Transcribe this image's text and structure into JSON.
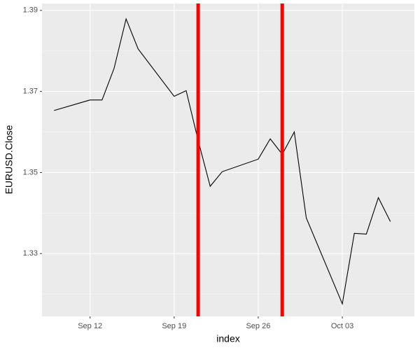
{
  "chart_data": {
    "type": "line",
    "x_label": "index",
    "y_label": "EURUSD.Close",
    "x": [
      "Sep 09",
      "Sep 12",
      "Sep 13",
      "Sep 14",
      "Sep 15",
      "Sep 16",
      "Sep 19",
      "Sep 20",
      "Sep 21",
      "Sep 22",
      "Sep 23",
      "Sep 26",
      "Sep 27",
      "Sep 28",
      "Sep 29",
      "Sep 30",
      "Oct 03",
      "Oct 04",
      "Oct 05",
      "Oct 06",
      "Oct 07"
    ],
    "series": [
      {
        "name": "EURUSD.Close",
        "color": "#000000",
        "values": [
          1.3653,
          1.3679,
          1.3679,
          1.3757,
          1.3879,
          1.3805,
          1.3688,
          1.3702,
          1.3579,
          1.3466,
          1.3502,
          1.3533,
          1.3583,
          1.3545,
          1.36,
          1.3388,
          1.3176,
          1.335,
          1.3348,
          1.3438,
          1.3379
        ]
      }
    ],
    "vlines": {
      "x": [
        "Sep 21",
        "Sep 28"
      ],
      "color": "#ff0000"
    },
    "xlim": [
      "Sep 08",
      "Oct 09"
    ],
    "xticks": [
      "Sep 12",
      "Sep 19",
      "Sep 26",
      "Oct 03"
    ],
    "ylim": [
      1.3145,
      1.3917
    ],
    "yticks": [
      1.33,
      1.35,
      1.37,
      1.39
    ],
    "minor_yticks": [
      1.32,
      1.34,
      1.36,
      1.38
    ],
    "grid": true
  }
}
